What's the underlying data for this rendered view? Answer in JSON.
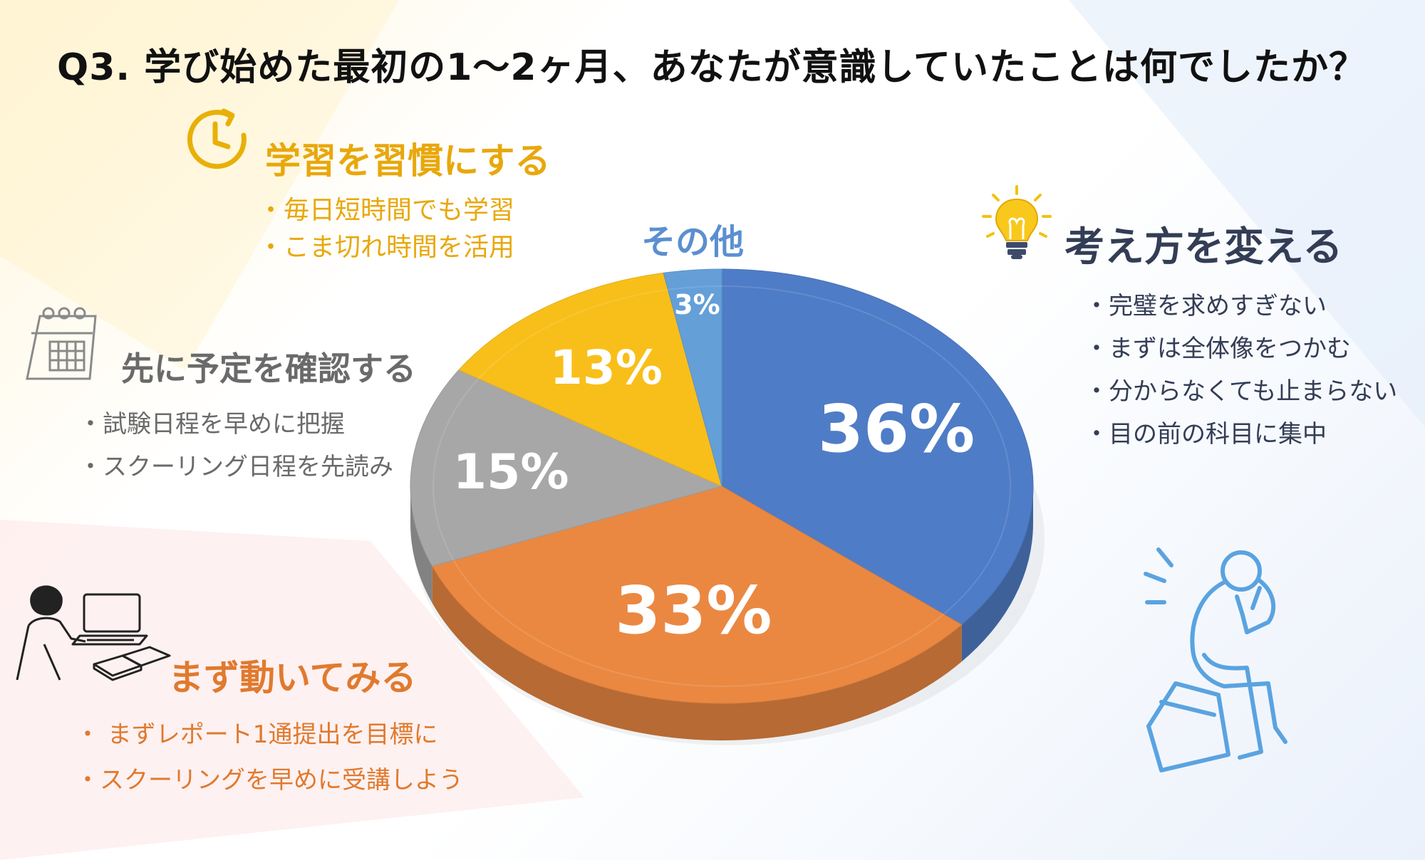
{
  "title": "Q3.  学び始めた最初の1～2ヶ月、あなたが意識していたことは何でしたか？",
  "categories": {
    "habit": {
      "title": "学習を習慣にする",
      "items": [
        "・毎日短時間でも学習",
        "・こま切れ時間を活用"
      ],
      "icon": "clock-icon",
      "color": "#e8a80c"
    },
    "schedule": {
      "title": "先に予定を確認する",
      "items": [
        "・試験日程を早めに把握",
        "・スクーリング日程を先読み"
      ],
      "icon": "calendar-icon",
      "color": "#666666"
    },
    "action": {
      "title": "まず動いてみる",
      "items": [
        "・ まずレポート1通提出を目標に",
        "・スクーリングを早めに受講しよう"
      ],
      "icon": "student-laptop-icon",
      "color": "#e07a2e"
    },
    "mindset": {
      "title": "考え方を変える",
      "items": [
        "・完璧を求めすぎない",
        "・まずは全体像をつかむ",
        "・分からなくても止まらない",
        "・目の前の科目に集中"
      ],
      "icon": "lightbulb-icon",
      "color": "#333d55"
    },
    "other": {
      "title": "その他",
      "color": "#5b8fd0"
    }
  },
  "thinker_icon": "thinker-icon",
  "chart_data": {
    "type": "pie",
    "style": "3d",
    "start": "12 o'clock, clockwise",
    "slices": [
      {
        "category": "考え方を変える",
        "value": 36,
        "label": "36%",
        "color": "#4f7cc6"
      },
      {
        "category": "まず動いてみる",
        "value": 33,
        "label": "33%",
        "color": "#ea8842"
      },
      {
        "category": "先に予定を確認する",
        "value": 15,
        "label": "15%",
        "color": "#a7a7a7"
      },
      {
        "category": "学習を習慣にする",
        "value": 13,
        "label": "13%",
        "color": "#f8bf1a"
      },
      {
        "category": "その他",
        "value": 3,
        "label": "3%",
        "color": "#649fd8"
      }
    ]
  }
}
